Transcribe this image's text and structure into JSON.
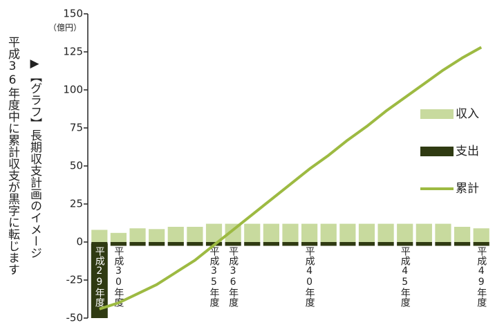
{
  "chart_data": {
    "type": "bar",
    "title": "▶【グラフ】長期収支計画のイメージ",
    "subtitle": "平成36年度中に累計収支が黒字に転じます",
    "y_unit": "（億円）",
    "categories": [
      "平成29年度",
      "平成30年度",
      null,
      null,
      null,
      null,
      "平成35年度",
      "平成36年度",
      null,
      null,
      null,
      "平成40年度",
      null,
      null,
      null,
      null,
      "平成45年度",
      null,
      null,
      null,
      "平成49年度"
    ],
    "series": [
      {
        "name": "収入",
        "type": "bar",
        "color": "#c8da9e",
        "values": [
          8,
          6,
          9,
          8.5,
          10,
          10,
          12,
          12,
          12,
          12,
          12,
          12,
          12,
          12,
          12,
          12,
          12,
          12,
          12,
          10,
          9
        ]
      },
      {
        "name": "支出",
        "type": "bar",
        "color": "#2f3a12",
        "values": [
          -2.5,
          -2.5,
          -2.5,
          -2.5,
          -2.5,
          -2.5,
          -2.5,
          -2.5,
          -2.5,
          -2.5,
          -2.5,
          -2.5,
          -2.5,
          -2.5,
          -2.5,
          -2.5,
          -2.5,
          -2.5,
          -2.5,
          -2.5,
          -2.5
        ]
      },
      {
        "name": "累計",
        "type": "line",
        "color": "#9dba42",
        "values": [
          -44,
          -40,
          -34,
          -28,
          -20,
          -12,
          -2,
          8,
          18,
          28,
          38,
          48,
          57,
          67,
          76,
          86,
          95,
          104,
          113,
          121,
          128
        ]
      }
    ],
    "ylim": [
      -50,
      150
    ],
    "yticks": [
      -50,
      -25,
      0,
      25,
      50,
      75,
      100,
      125,
      150
    ],
    "grid": false
  }
}
